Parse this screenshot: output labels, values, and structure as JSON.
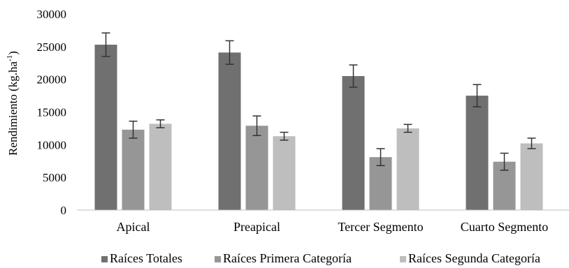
{
  "chart_data": {
    "type": "bar",
    "categories": [
      "Apical",
      "Preapical",
      "Tercer Segmento",
      "Cuarto Segmento"
    ],
    "series": [
      {
        "name": "Raíces Totales",
        "color": "#707070",
        "values": [
          25300,
          24100,
          20500,
          17500
        ],
        "errors": [
          1800,
          1800,
          1700,
          1700
        ]
      },
      {
        "name": "Raíces Primera Categoría",
        "color": "#969696",
        "values": [
          12300,
          12900,
          8100,
          7400
        ],
        "errors": [
          1300,
          1500,
          1300,
          1300
        ]
      },
      {
        "name": "Raíces Segunda Categoría",
        "color": "#bebebe",
        "values": [
          13200,
          11300,
          12500,
          10200
        ],
        "errors": [
          600,
          600,
          600,
          800
        ]
      }
    ],
    "ylim": [
      0,
      30000
    ],
    "yticks": [
      0,
      5000,
      10000,
      15000,
      20000,
      25000,
      30000
    ],
    "ylabel_main": "Rendimiento (kg.ha",
    "ylabel_sup": "-1",
    "ylabel_close": ")",
    "grid": false,
    "legend_position": "bottom"
  }
}
